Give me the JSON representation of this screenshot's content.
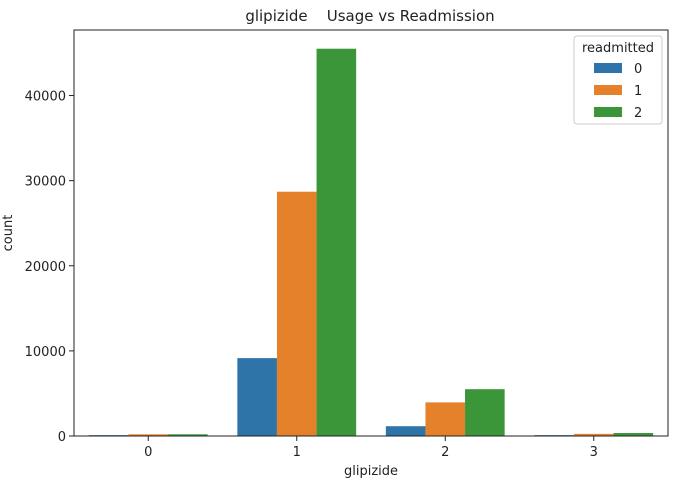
{
  "chart_data": {
    "type": "bar",
    "title": "glipizide    Usage vs Readmission",
    "xlabel": "glipizide",
    "ylabel": "count",
    "categories": [
      "0",
      "1",
      "2",
      "3"
    ],
    "ylim": [
      0,
      47700
    ],
    "yticks": [
      0,
      10000,
      20000,
      30000,
      40000
    ],
    "grid": false,
    "legend": {
      "title": "readmitted",
      "placement": "top-right"
    },
    "series": [
      {
        "name": "0",
        "color": "#2f74a8",
        "values": [
          100,
          9150,
          1150,
          100
        ]
      },
      {
        "name": "1",
        "color": "#e5812b",
        "values": [
          200,
          28700,
          3950,
          250
        ]
      },
      {
        "name": "2",
        "color": "#3b9539",
        "values": [
          200,
          45500,
          5500,
          350
        ]
      }
    ]
  }
}
